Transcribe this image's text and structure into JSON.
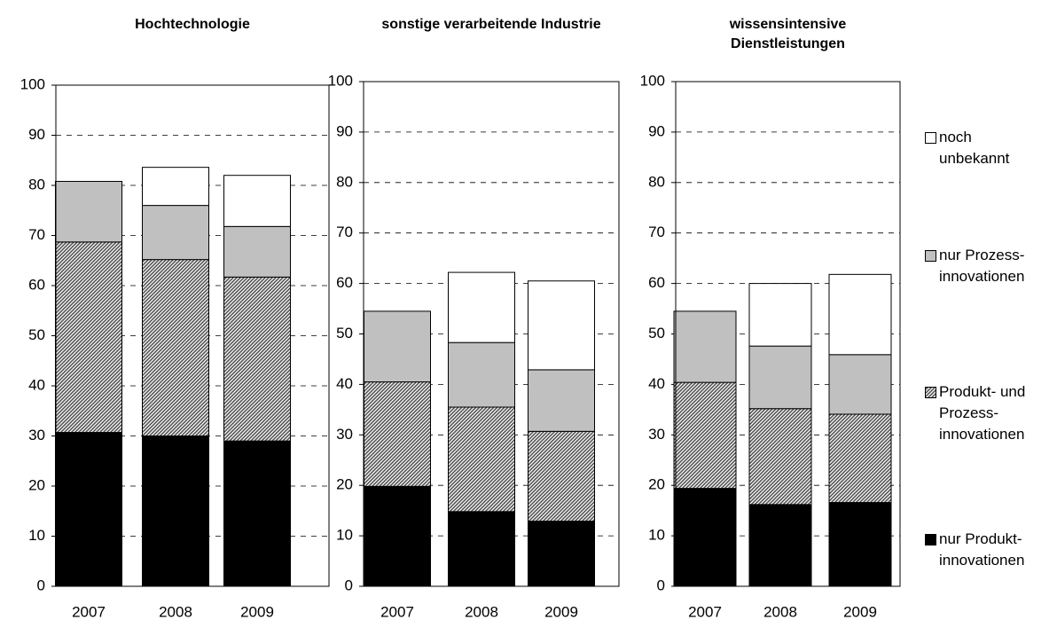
{
  "chart_data": [
    {
      "type": "stacked_bar",
      "title": "Hochtechnologie",
      "categories": [
        "2007",
        "2008",
        "2009"
      ],
      "series": [
        {
          "name": "nur Produkt-innovationen",
          "color": "#000000",
          "values": [
            30.7,
            30.0,
            29.0
          ]
        },
        {
          "name": "Produkt- und Prozess-innovationen",
          "color": "#555555",
          "pattern": "hatch",
          "values": [
            38.0,
            35.2,
            32.7
          ]
        },
        {
          "name": "nur Prozess-innovationen",
          "color": "#c0c0c0",
          "values": [
            12.1,
            10.8,
            10.1
          ]
        },
        {
          "name": "noch unbekannt",
          "color": "#ffffff",
          "values": [
            0,
            7.6,
            10.2
          ]
        }
      ],
      "ylim": [
        0,
        100
      ],
      "yticks": [
        0,
        10,
        20,
        30,
        40,
        50,
        60,
        70,
        80,
        90,
        100
      ],
      "grid": true
    },
    {
      "type": "stacked_bar",
      "title": "sonstige verarbeitende Industrie",
      "categories": [
        "2007",
        "2008",
        "2009"
      ],
      "series": [
        {
          "name": "nur Produkt-innovationen",
          "color": "#000000",
          "values": [
            19.8,
            14.8,
            12.9
          ]
        },
        {
          "name": "Produkt- und Prozess-innovationen",
          "color": "#555555",
          "pattern": "hatch",
          "values": [
            20.7,
            20.7,
            17.8
          ]
        },
        {
          "name": "nur Prozess-innovationen",
          "color": "#c0c0c0",
          "values": [
            14.0,
            12.8,
            12.2
          ]
        },
        {
          "name": "noch unbekannt",
          "color": "#ffffff",
          "values": [
            0,
            13.9,
            17.6
          ]
        }
      ],
      "ylim": [
        0,
        100
      ],
      "yticks": [
        0,
        10,
        20,
        30,
        40,
        50,
        60,
        70,
        80,
        90,
        100
      ],
      "grid": true
    },
    {
      "type": "stacked_bar",
      "title": "wissensintensive Dienstleistungen",
      "categories": [
        "2007",
        "2008",
        "2009"
      ],
      "series": [
        {
          "name": "nur Produkt-innovationen",
          "color": "#000000",
          "values": [
            19.4,
            16.2,
            16.6
          ]
        },
        {
          "name": "Produkt- und Prozess-innovationen",
          "color": "#555555",
          "pattern": "hatch",
          "values": [
            21.0,
            19.0,
            17.5
          ]
        },
        {
          "name": "nur Prozess-innovationen",
          "color": "#c0c0c0",
          "values": [
            14.1,
            12.4,
            11.8
          ]
        },
        {
          "name": "noch unbekannt",
          "color": "#ffffff",
          "values": [
            0,
            12.4,
            15.9
          ]
        }
      ],
      "ylim": [
        0,
        100
      ],
      "yticks": [
        0,
        10,
        20,
        30,
        40,
        50,
        60,
        70,
        80,
        90,
        100
      ],
      "grid": true
    }
  ]
}
